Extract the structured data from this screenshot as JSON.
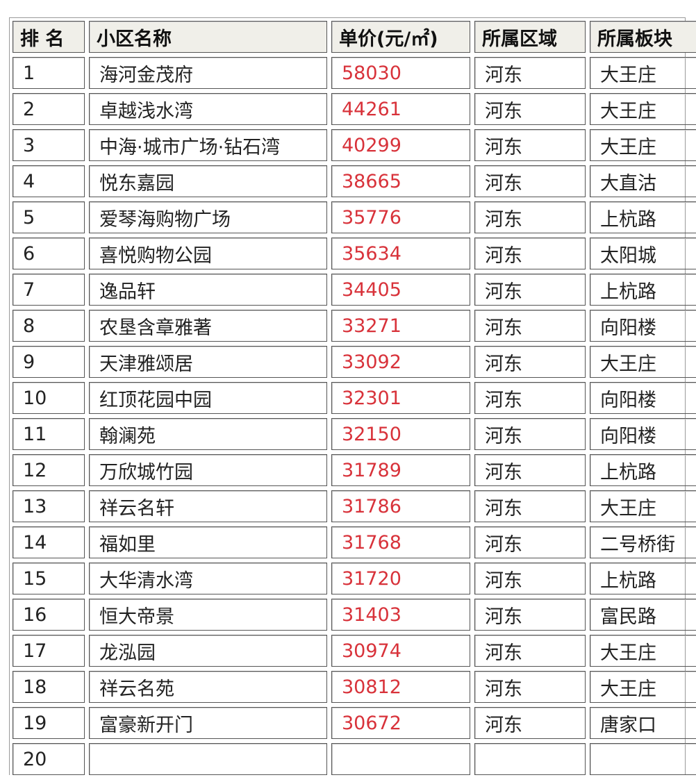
{
  "headers": [
    "排 名",
    "小区名称",
    "单价(元/㎡)",
    "所属区域",
    "所属板块"
  ],
  "colors": {
    "price": "#d8323a",
    "header_bg": "#f0efe9"
  },
  "rows": [
    [
      "1",
      "海河金茂府",
      "58030",
      "河东",
      "大王庄"
    ],
    [
      "2",
      "卓越浅水湾",
      "44261",
      "河东",
      "大王庄"
    ],
    [
      "3",
      "中海·城市广场·钻石湾",
      "40299",
      "河东",
      "大王庄"
    ],
    [
      "4",
      "悦东嘉园",
      "38665",
      "河东",
      "大直沽"
    ],
    [
      "5",
      "爱琴海购物广场",
      "35776",
      "河东",
      "上杭路"
    ],
    [
      "6",
      "喜悦购物公园",
      "35634",
      "河东",
      "太阳城"
    ],
    [
      "7",
      "逸品轩",
      "34405",
      "河东",
      "上杭路"
    ],
    [
      "8",
      "农垦含章雅著",
      "33271",
      "河东",
      "向阳楼"
    ],
    [
      "9",
      "天津雅颂居",
      "33092",
      "河东",
      "大王庄"
    ],
    [
      "10",
      "红顶花园中园",
      "32301",
      "河东",
      "向阳楼"
    ],
    [
      "11",
      "翰澜苑",
      "32150",
      "河东",
      "向阳楼"
    ],
    [
      "12",
      "万欣城竹园",
      "31789",
      "河东",
      "上杭路"
    ],
    [
      "13",
      "祥云名轩",
      "31786",
      "河东",
      "大王庄"
    ],
    [
      "14",
      "福如里",
      "31768",
      "河东",
      "二号桥街"
    ],
    [
      "15",
      "大华清水湾",
      "31720",
      "河东",
      "上杭路"
    ],
    [
      "16",
      "恒大帝景",
      "31403",
      "河东",
      "富民路"
    ],
    [
      "17",
      "龙泓园",
      "30974",
      "河东",
      "大王庄"
    ],
    [
      "18",
      "祥云名苑",
      "30812",
      "河东",
      "大王庄"
    ],
    [
      "19",
      "富豪新开门",
      "30672",
      "河东",
      "唐家口"
    ],
    [
      "20",
      "",
      "",
      "",
      ""
    ]
  ]
}
